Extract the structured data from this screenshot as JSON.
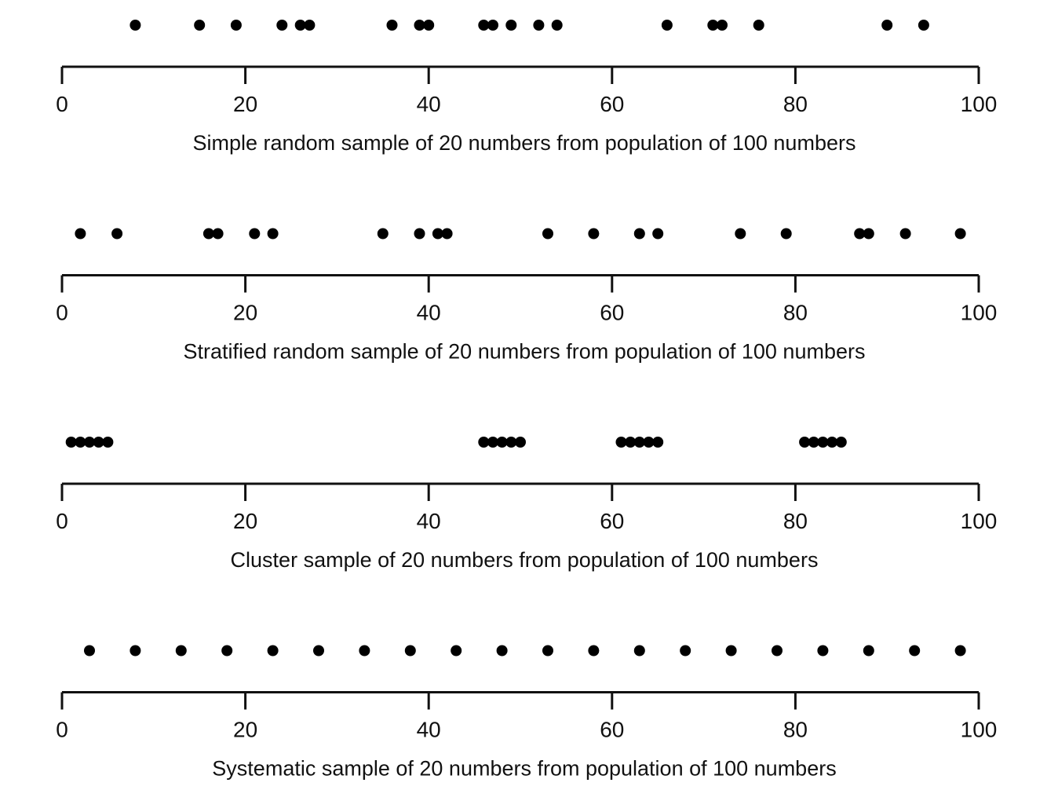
{
  "chart_data": [
    {
      "type": "scatter",
      "xlabel": "Simple random sample of 20 numbers from population of 100 numbers",
      "xlim": [
        0,
        100
      ],
      "x_ticks": [
        "0",
        "20",
        "40",
        "60",
        "80",
        "100"
      ],
      "x_tick_values": [
        0,
        20,
        40,
        60,
        80,
        100
      ],
      "x": [
        8,
        15,
        19,
        24,
        26,
        27,
        36,
        39,
        40,
        46,
        47,
        49,
        52,
        54,
        66,
        71,
        72,
        76,
        90,
        94
      ]
    },
    {
      "type": "scatter",
      "xlabel": "Stratified random sample of 20 numbers from population of 100 numbers",
      "xlim": [
        0,
        100
      ],
      "x_ticks": [
        "0",
        "20",
        "40",
        "60",
        "80",
        "100"
      ],
      "x_tick_values": [
        0,
        20,
        40,
        60,
        80,
        100
      ],
      "x": [
        2,
        6,
        16,
        17,
        21,
        23,
        35,
        39,
        41,
        42,
        53,
        58,
        63,
        65,
        74,
        79,
        87,
        88,
        92,
        98
      ]
    },
    {
      "type": "scatter",
      "xlabel": "Cluster sample of 20 numbers from population of 100 numbers",
      "xlim": [
        0,
        100
      ],
      "x_ticks": [
        "0",
        "20",
        "40",
        "60",
        "80",
        "100"
      ],
      "x_tick_values": [
        0,
        20,
        40,
        60,
        80,
        100
      ],
      "x": [
        1,
        2,
        3,
        4,
        5,
        46,
        47,
        48,
        49,
        50,
        61,
        62,
        63,
        64,
        65,
        81,
        82,
        83,
        84,
        85
      ]
    },
    {
      "type": "scatter",
      "xlabel": "Systematic sample of 20 numbers from population of 100 numbers",
      "xlim": [
        0,
        100
      ],
      "x_ticks": [
        "0",
        "20",
        "40",
        "60",
        "80",
        "100"
      ],
      "x_tick_values": [
        0,
        20,
        40,
        60,
        80,
        100
      ],
      "x": [
        3,
        8,
        13,
        18,
        23,
        28,
        33,
        38,
        43,
        48,
        53,
        58,
        63,
        68,
        73,
        78,
        83,
        88,
        93,
        98
      ]
    }
  ]
}
